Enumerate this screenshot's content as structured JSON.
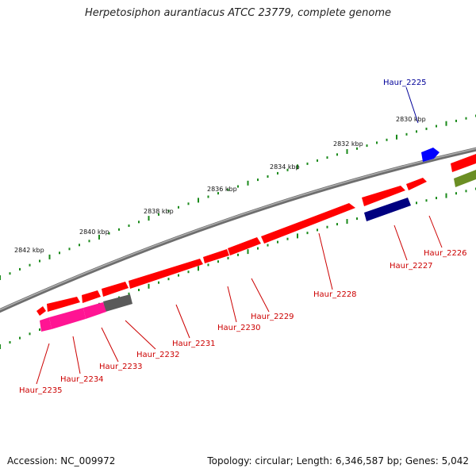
{
  "title": "Herpetosiphon aurantiacus ATCC 23779, complete genome",
  "footer": {
    "accession": "Accession: NC_009972",
    "topology": "Topology: circular; Length: 6,346,587 bp; Genes: 5,042"
  },
  "colors": {
    "backbone": "#808080",
    "tick": "#1a8a1a",
    "forward_gene": "#ff0000",
    "reverse_gene_red": "#ff1a1a",
    "pink_gene": "#ff1493",
    "navy_gene": "#000080",
    "blue_gene": "#0000ff",
    "olive_gene": "#6b8e23",
    "gray_gene": "#666666",
    "label_red": "#cc0000",
    "label_blue": "#000099"
  },
  "kbp_labels": [
    "2830 kbp",
    "2832 kbp",
    "2834 kbp",
    "2836 kbp",
    "2838 kbp",
    "2840 kbp",
    "2842 kbp"
  ],
  "genes": [
    {
      "name": "Haur_2225",
      "color": "blue"
    },
    {
      "name": "Haur_2226",
      "color": "red"
    },
    {
      "name": "Haur_2227",
      "color": "red"
    },
    {
      "name": "Haur_2228",
      "color": "red"
    },
    {
      "name": "Haur_2229",
      "color": "red"
    },
    {
      "name": "Haur_2230",
      "color": "red"
    },
    {
      "name": "Haur_2231",
      "color": "red"
    },
    {
      "name": "Haur_2232",
      "color": "red"
    },
    {
      "name": "Haur_2233",
      "color": "red"
    },
    {
      "name": "Haur_2234",
      "color": "red"
    },
    {
      "name": "Haur_2235",
      "color": "red"
    }
  ]
}
